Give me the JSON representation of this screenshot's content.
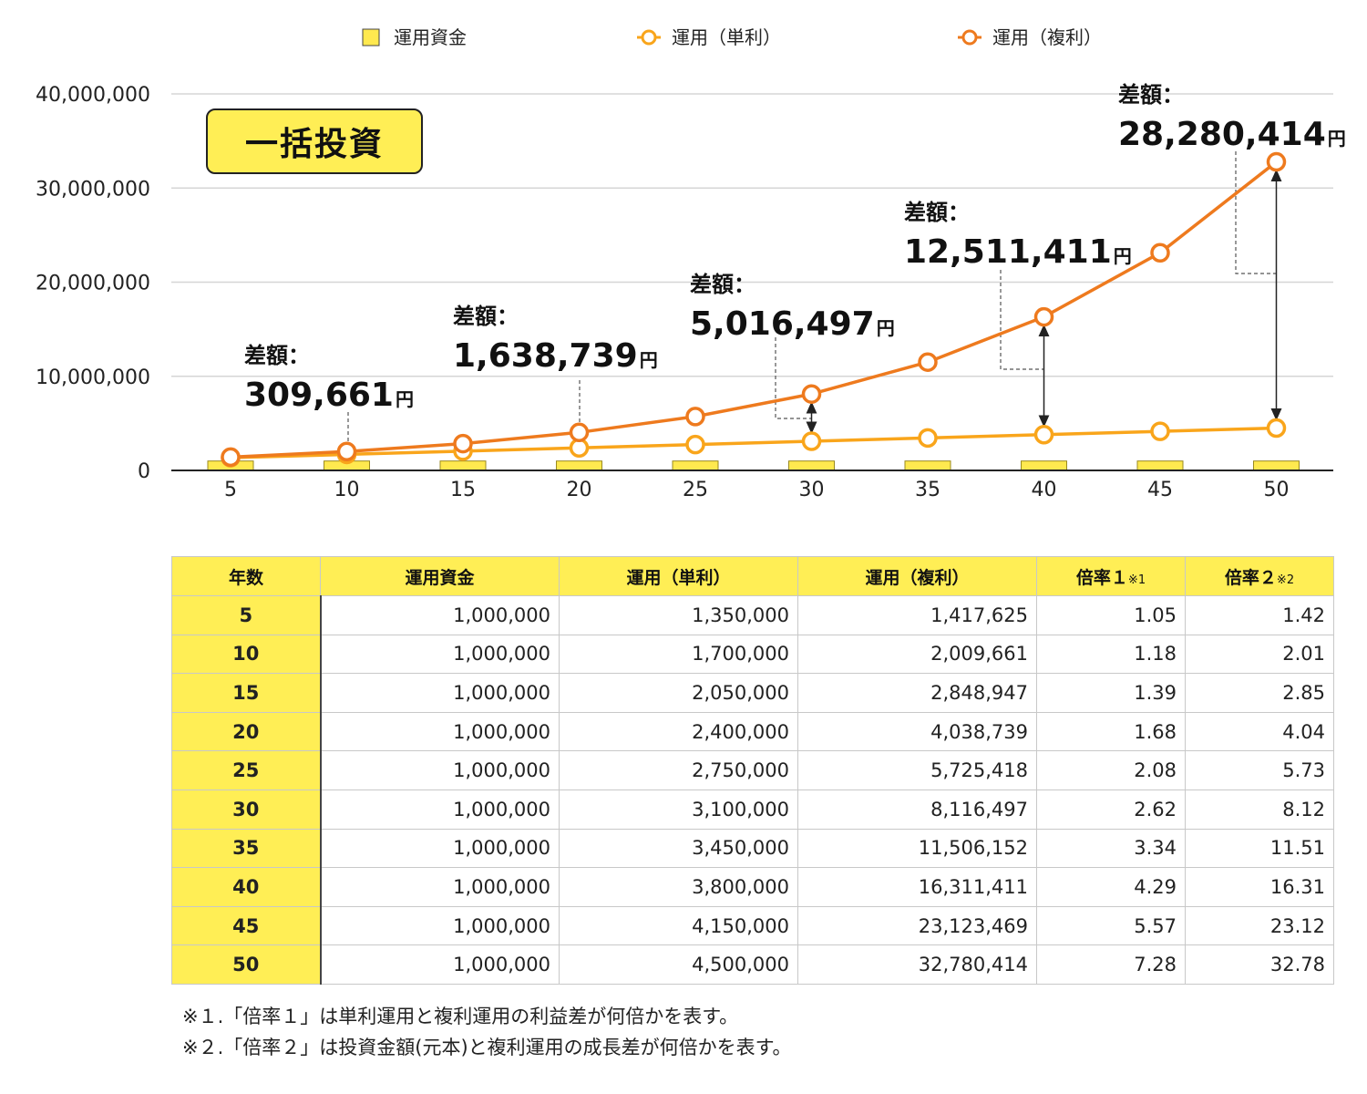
{
  "badge": "一括投資",
  "legend": [
    {
      "label": "運用資金",
      "color": "#FFE94F",
      "shape": "square"
    },
    {
      "label": "運用（単利）",
      "color": "#F9A51B",
      "shape": "circle"
    },
    {
      "label": "運用（複利）",
      "color": "#EE7A1E",
      "shape": "circle"
    }
  ],
  "chart_data": {
    "type": "line",
    "x": [
      5,
      10,
      15,
      20,
      25,
      30,
      35,
      40,
      45,
      50
    ],
    "ylim": [
      0,
      40000000
    ],
    "yticks": [
      "0",
      "10,000,000",
      "20,000,000",
      "30,000,000",
      "40,000,000"
    ],
    "yticks_values": [
      0,
      10000000,
      20000000,
      30000000,
      40000000
    ],
    "series": [
      {
        "name": "運用資金",
        "kind": "bar",
        "color": "#FFE94F",
        "values": [
          1000000,
          1000000,
          1000000,
          1000000,
          1000000,
          1000000,
          1000000,
          1000000,
          1000000,
          1000000
        ]
      },
      {
        "name": "運用（単利）",
        "kind": "line",
        "color": "#F9A51B",
        "values": [
          1350000,
          1700000,
          2050000,
          2400000,
          2750000,
          3100000,
          3450000,
          3800000,
          4150000,
          4500000
        ]
      },
      {
        "name": "運用（複利）",
        "kind": "line",
        "color": "#EE7A1E",
        "values": [
          1417625,
          2009661,
          2848947,
          4038739,
          5725418,
          8116497,
          11506152,
          16311411,
          23123469,
          32780414
        ]
      }
    ],
    "annotations": [
      {
        "label": "差額：",
        "value": "309,661",
        "unit": "円",
        "x": 10
      },
      {
        "label": "差額：",
        "value": "1,638,739",
        "unit": "円",
        "x": 20
      },
      {
        "label": "差額：",
        "value": "5,016,497",
        "unit": "円",
        "x": 30
      },
      {
        "label": "差額：",
        "value": "12,511,411",
        "unit": "円",
        "x": 40
      },
      {
        "label": "差額：",
        "value": "28,280,414",
        "unit": "円",
        "x": 50
      }
    ],
    "grid": true,
    "legend_position": "top"
  },
  "table": {
    "headers": [
      "年数",
      "運用資金",
      "運用（単利）",
      "運用（複利）",
      "倍率１",
      "倍率２"
    ],
    "header_notes": [
      "",
      "",
      "",
      "",
      "※1",
      "※2"
    ],
    "rows": [
      [
        "5",
        "1,000,000",
        "1,350,000",
        "1,417,625",
        "1.05",
        "1.42"
      ],
      [
        "10",
        "1,000,000",
        "1,700,000",
        "2,009,661",
        "1.18",
        "2.01"
      ],
      [
        "15",
        "1,000,000",
        "2,050,000",
        "2,848,947",
        "1.39",
        "2.85"
      ],
      [
        "20",
        "1,000,000",
        "2,400,000",
        "4,038,739",
        "1.68",
        "4.04"
      ],
      [
        "25",
        "1,000,000",
        "2,750,000",
        "5,725,418",
        "2.08",
        "5.73"
      ],
      [
        "30",
        "1,000,000",
        "3,100,000",
        "8,116,497",
        "2.62",
        "8.12"
      ],
      [
        "35",
        "1,000,000",
        "3,450,000",
        "11,506,152",
        "3.34",
        "11.51"
      ],
      [
        "40",
        "1,000,000",
        "3,800,000",
        "16,311,411",
        "4.29",
        "16.31"
      ],
      [
        "45",
        "1,000,000",
        "4,150,000",
        "23,123,469",
        "5.57",
        "23.12"
      ],
      [
        "50",
        "1,000,000",
        "4,500,000",
        "32,780,414",
        "7.28",
        "32.78"
      ]
    ]
  },
  "notes": [
    "※１.「倍率１」は単利運用と複利運用の利益差が何倍かを表す。",
    "※２.「倍率２」は投資金額(元本)と複利運用の成長差が何倍かを表す。"
  ]
}
